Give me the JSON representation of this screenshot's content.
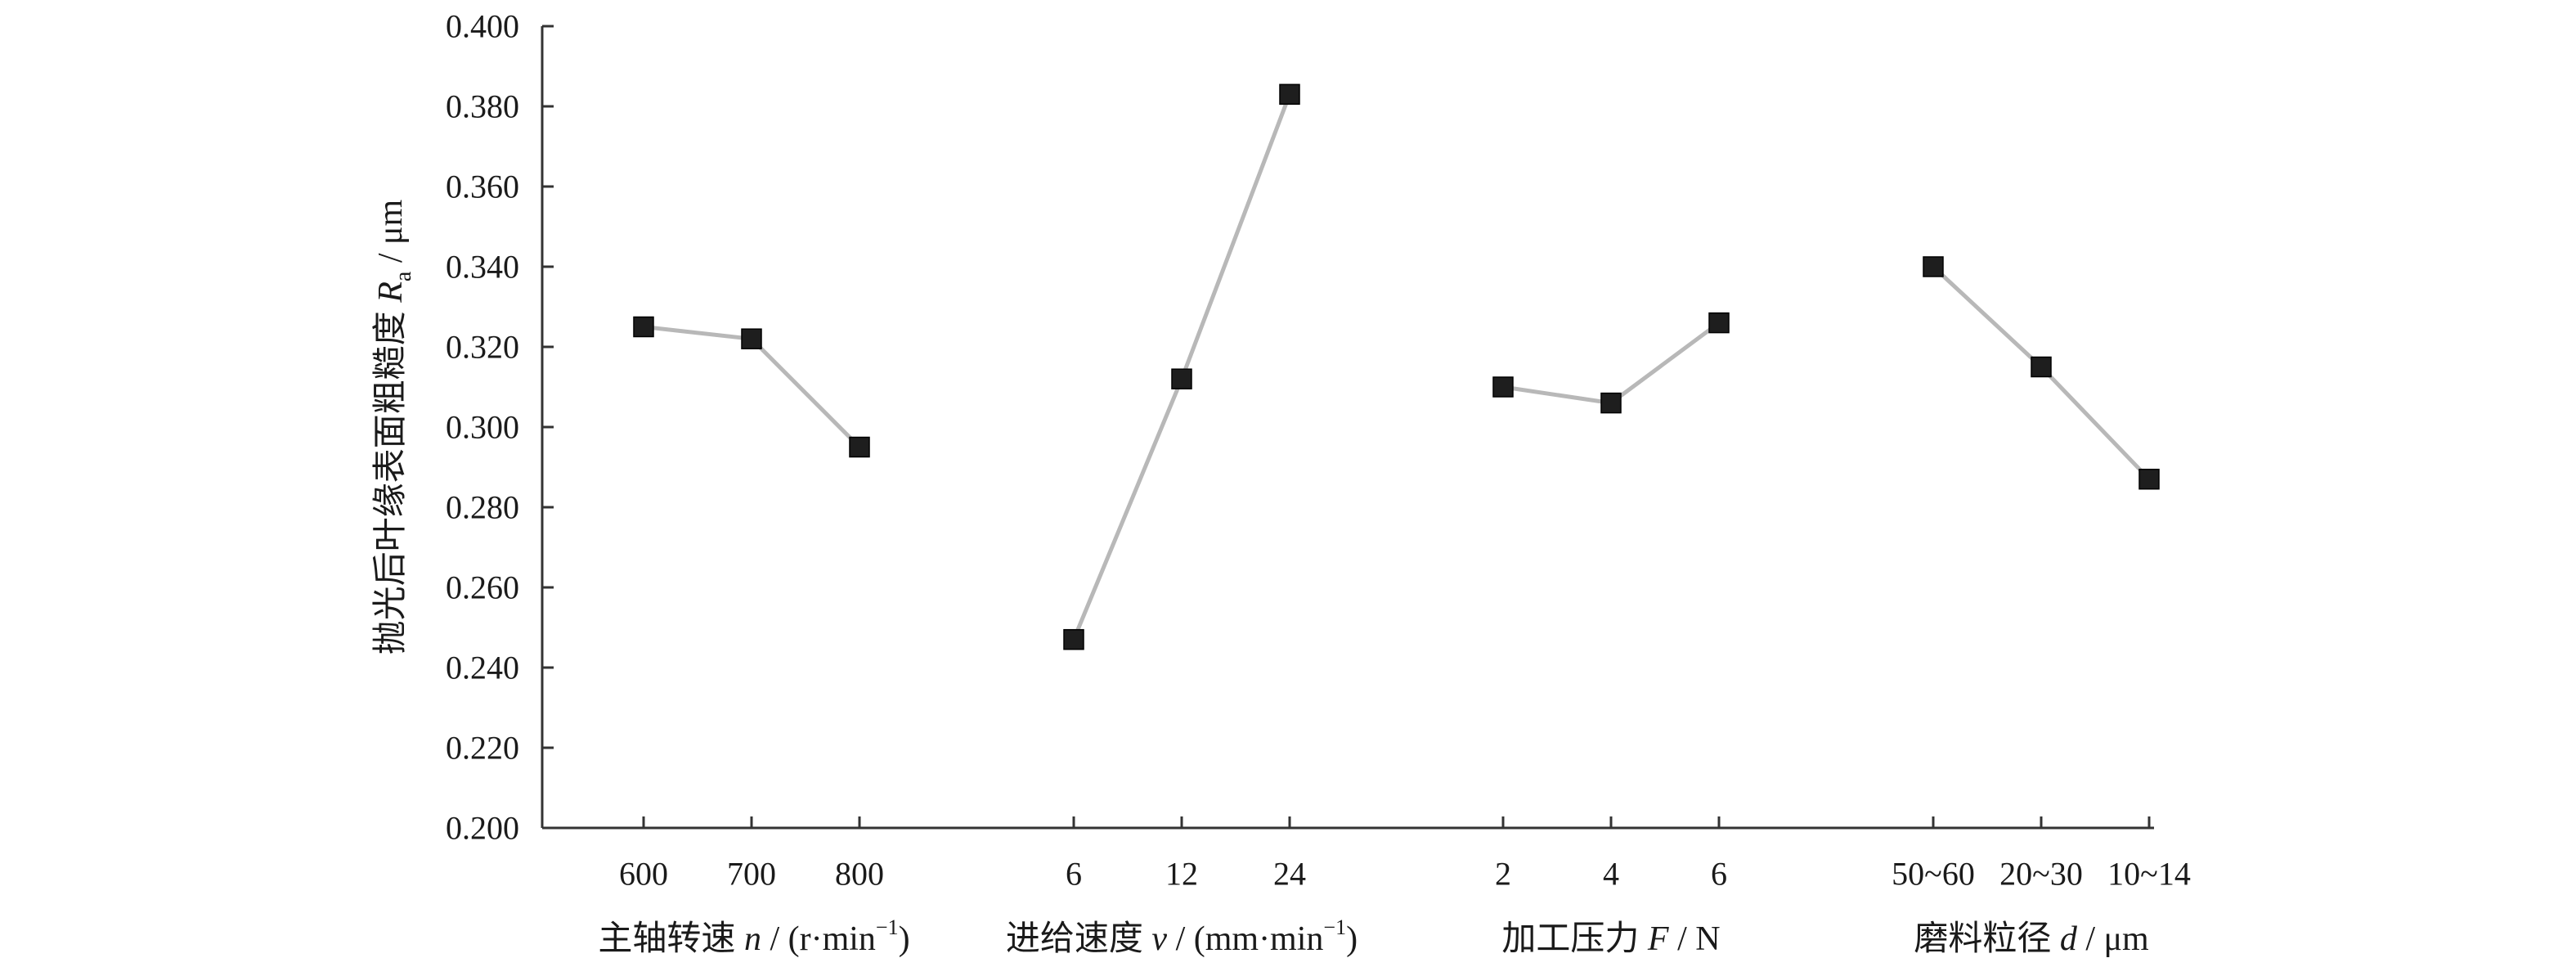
{
  "chart_data": {
    "type": "line",
    "title": "",
    "ylabel": {
      "main": "抛光后叶缘表面粗糙度",
      "var": "R",
      "sub": "a",
      "unit": " / μm"
    },
    "ylim": [
      0.2,
      0.4
    ],
    "yticks": [
      "0.200",
      "0.220",
      "0.240",
      "0.260",
      "0.280",
      "0.300",
      "0.320",
      "0.340",
      "0.360",
      "0.380",
      "0.400"
    ],
    "grid": false,
    "groups": [
      {
        "label": {
          "pre": "主轴转速 ",
          "var": "n",
          "post": " / (r·min",
          "sup": "−1",
          "end": ")"
        },
        "categories": [
          "600",
          "700",
          "800"
        ],
        "values": [
          0.325,
          0.322,
          0.295
        ]
      },
      {
        "label": {
          "pre": "进给速度 ",
          "var": "v",
          "post": " / (mm·min",
          "sup": "−1",
          "end": ")"
        },
        "categories": [
          "6",
          "12",
          "24"
        ],
        "values": [
          0.247,
          0.312,
          0.383
        ]
      },
      {
        "label": {
          "pre": "加工压力 ",
          "var": "F",
          "post": " / N",
          "sup": "",
          "end": ""
        },
        "categories": [
          "2",
          "4",
          "6"
        ],
        "values": [
          0.31,
          0.306,
          0.326
        ]
      },
      {
        "label": {
          "pre": "磨料粒径 ",
          "var": "d",
          "post": " / μm",
          "sup": "",
          "end": ""
        },
        "categories": [
          "50~60",
          "20~30",
          "10~14"
        ],
        "values": [
          0.34,
          0.315,
          0.287
        ]
      }
    ],
    "colors": {
      "line": "#b8b8b8",
      "marker": "#1e1e1e",
      "axis": "#333333"
    }
  }
}
